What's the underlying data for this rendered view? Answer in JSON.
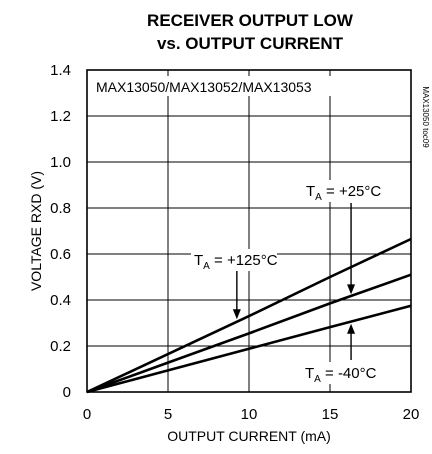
{
  "chart_data": {
    "type": "line",
    "title_lines": [
      "RECEIVER OUTPUT LOW",
      "vs. OUTPUT CURRENT"
    ],
    "xlabel": "OUTPUT CURRENT (mA)",
    "ylabel": "VOLTAGE RXD (V)",
    "xlim": [
      0,
      20
    ],
    "ylim": [
      0,
      1.4
    ],
    "x_ticks": [
      "0",
      "5",
      "10",
      "15",
      "20"
    ],
    "y_ticks": [
      "0",
      "0.2",
      "0.4",
      "0.6",
      "0.8",
      "1.0",
      "1.2",
      "1.4"
    ],
    "grid": true,
    "part_numbers": "MAX13050/MAX13052/MAX13053",
    "figure_code": "MAX13050 toc09",
    "series": [
      {
        "name": "TA = +125°C",
        "x": [
          0,
          5,
          10,
          15,
          20
        ],
        "y": [
          0,
          0.165,
          0.33,
          0.5,
          0.665
        ]
      },
      {
        "name": "TA = +25°C",
        "x": [
          0,
          5,
          10,
          15,
          20
        ],
        "y": [
          0,
          0.128,
          0.255,
          0.385,
          0.51
        ]
      },
      {
        "name": "TA = -40°C",
        "x": [
          0,
          5,
          10,
          15,
          20
        ],
        "y": [
          0,
          0.094,
          0.188,
          0.282,
          0.375
        ]
      }
    ],
    "annotations": [
      {
        "prefix": "T",
        "sub": "A",
        "rest": " = +125°C",
        "series": 0
      },
      {
        "prefix": "T",
        "sub": "A",
        "rest": " = +25°C",
        "series": 1
      },
      {
        "prefix": "T",
        "sub": "A",
        "rest": " = -40°C",
        "series": 2
      }
    ]
  }
}
